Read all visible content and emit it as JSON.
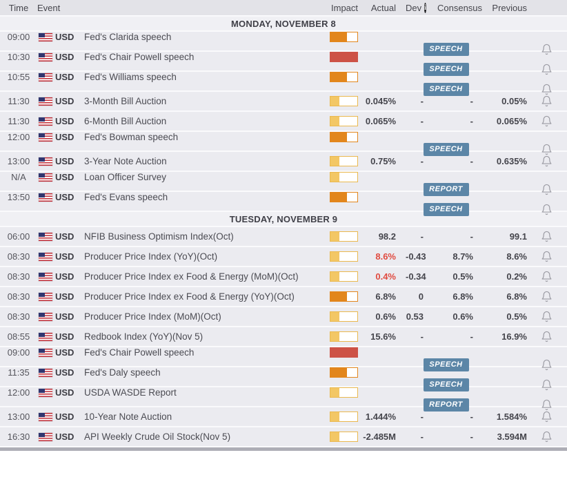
{
  "header": {
    "time": "Time",
    "event": "Event",
    "impact": "Impact",
    "actual": "Actual",
    "dev": "Dev",
    "dev_info_icon": "i",
    "consensus": "Consensus",
    "previous": "Previous"
  },
  "colors": {
    "impact_high": "#cd5246",
    "impact_medium": "#e2861c",
    "impact_low": "#f3c765",
    "impact_low_border": "#eab84e",
    "badge_bg": "#5c86a7",
    "actual_negative": "#e04a3f"
  },
  "sections": [
    {
      "title": "MONDAY, NOVEMBER 8",
      "rows": [
        {
          "time": "09:00",
          "currency": "USD",
          "event": "Fed's Clarida speech",
          "impact": "medium",
          "badge": "SPEECH",
          "actual": "",
          "actual_red": false,
          "dev": "",
          "consensus": "",
          "previous": ""
        },
        {
          "time": "10:30",
          "currency": "USD",
          "event": "Fed's Chair Powell speech",
          "impact": "high",
          "badge": "SPEECH",
          "actual": "",
          "actual_red": false,
          "dev": "",
          "consensus": "",
          "previous": ""
        },
        {
          "time": "10:55",
          "currency": "USD",
          "event": "Fed's Williams speech",
          "impact": "medium",
          "badge": "SPEECH",
          "actual": "",
          "actual_red": false,
          "dev": "",
          "consensus": "",
          "previous": ""
        },
        {
          "time": "11:30",
          "currency": "USD",
          "event": "3-Month Bill Auction",
          "impact": "low",
          "badge": null,
          "actual": "0.045%",
          "actual_red": false,
          "dev": "-",
          "consensus": "-",
          "previous": "0.05%"
        },
        {
          "time": "11:30",
          "currency": "USD",
          "event": "6-Month Bill Auction",
          "impact": "low",
          "badge": null,
          "actual": "0.065%",
          "actual_red": false,
          "dev": "-",
          "consensus": "-",
          "previous": "0.065%"
        },
        {
          "time": "12:00",
          "currency": "USD",
          "event": "Fed's Bowman speech",
          "impact": "medium",
          "badge": "SPEECH",
          "actual": "",
          "actual_red": false,
          "dev": "",
          "consensus": "",
          "previous": ""
        },
        {
          "time": "13:00",
          "currency": "USD",
          "event": "3-Year Note Auction",
          "impact": "low",
          "badge": null,
          "actual": "0.75%",
          "actual_red": false,
          "dev": "-",
          "consensus": "-",
          "previous": "0.635%"
        },
        {
          "time": "N/A",
          "currency": "USD",
          "event": "Loan Officer Survey",
          "impact": "low",
          "badge": "REPORT",
          "actual": "",
          "actual_red": false,
          "dev": "",
          "consensus": "",
          "previous": ""
        },
        {
          "time": "13:50",
          "currency": "USD",
          "event": "Fed's Evans speech",
          "impact": "medium",
          "badge": "SPEECH",
          "actual": "",
          "actual_red": false,
          "dev": "",
          "consensus": "",
          "previous": ""
        }
      ]
    },
    {
      "title": "TUESDAY, NOVEMBER 9",
      "rows": [
        {
          "time": "06:00",
          "currency": "USD",
          "event": "NFIB Business Optimism Index(Oct)",
          "impact": "low",
          "badge": null,
          "actual": "98.2",
          "actual_red": false,
          "dev": "-",
          "consensus": "-",
          "previous": "99.1"
        },
        {
          "time": "08:30",
          "currency": "USD",
          "event": "Producer Price Index (YoY)(Oct)",
          "impact": "low",
          "badge": null,
          "actual": "8.6%",
          "actual_red": true,
          "dev": "-0.43",
          "consensus": "8.7%",
          "previous": "8.6%"
        },
        {
          "time": "08:30",
          "currency": "USD",
          "event": "Producer Price Index ex Food & Energy (MoM)(Oct)",
          "impact": "low",
          "badge": null,
          "actual": "0.4%",
          "actual_red": true,
          "dev": "-0.34",
          "consensus": "0.5%",
          "previous": "0.2%"
        },
        {
          "time": "08:30",
          "currency": "USD",
          "event": "Producer Price Index ex Food & Energy (YoY)(Oct)",
          "impact": "medium",
          "badge": null,
          "actual": "6.8%",
          "actual_red": false,
          "dev": "0",
          "consensus": "6.8%",
          "previous": "6.8%"
        },
        {
          "time": "08:30",
          "currency": "USD",
          "event": "Producer Price Index (MoM)(Oct)",
          "impact": "low",
          "badge": null,
          "actual": "0.6%",
          "actual_red": false,
          "dev": "0.53",
          "consensus": "0.6%",
          "previous": "0.5%"
        },
        {
          "time": "08:55",
          "currency": "USD",
          "event": "Redbook Index (YoY)(Nov 5)",
          "impact": "low",
          "badge": null,
          "actual": "15.6%",
          "actual_red": false,
          "dev": "-",
          "consensus": "-",
          "previous": "16.9%"
        },
        {
          "time": "09:00",
          "currency": "USD",
          "event": "Fed's Chair Powell speech",
          "impact": "high",
          "badge": "SPEECH",
          "actual": "",
          "actual_red": false,
          "dev": "",
          "consensus": "",
          "previous": ""
        },
        {
          "time": "11:35",
          "currency": "USD",
          "event": "Fed's Daly speech",
          "impact": "medium",
          "badge": "SPEECH",
          "actual": "",
          "actual_red": false,
          "dev": "",
          "consensus": "",
          "previous": ""
        },
        {
          "time": "12:00",
          "currency": "USD",
          "event": "USDA WASDE Report",
          "impact": "low",
          "badge": "REPORT",
          "actual": "",
          "actual_red": false,
          "dev": "",
          "consensus": "",
          "previous": ""
        },
        {
          "time": "13:00",
          "currency": "USD",
          "event": "10-Year Note Auction",
          "impact": "low",
          "badge": null,
          "actual": "1.444%",
          "actual_red": false,
          "dev": "-",
          "consensus": "-",
          "previous": "1.584%"
        },
        {
          "time": "16:30",
          "currency": "USD",
          "event": "API Weekly Crude Oil Stock(Nov 5)",
          "impact": "low",
          "badge": null,
          "actual": "-2.485M",
          "actual_red": false,
          "dev": "-",
          "consensus": "-",
          "previous": "3.594M"
        }
      ]
    }
  ]
}
